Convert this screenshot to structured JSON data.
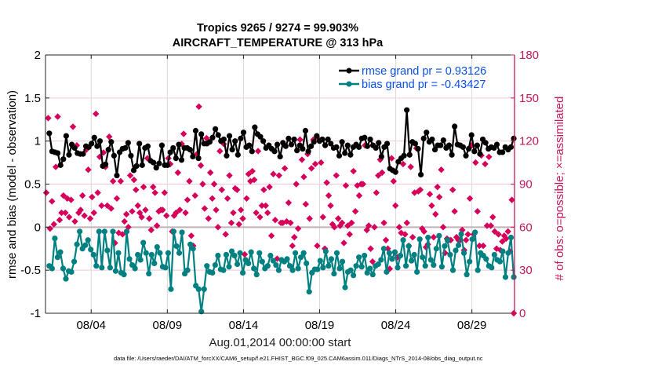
{
  "chart_data": {
    "type": "line",
    "title": [
      "Tropics 9265 / 9274 = 99.903%",
      "AIRCRAFT_TEMPERATURE @ 313 hPa"
    ],
    "xlabel": "Aug.01,2014 00:00:00 start",
    "ylabel": "rmse and bias (model - observation)",
    "ylabel_right": "# of obs: o=possible; ×=assimilated",
    "footer": "data file: /Users/raeder/DAI/ATM_forcXX/CAM6_setup/f.e21.FHIST_BGC.f09_025.CAM6assim.011/Diags_NTrS_2014-08/obs_diag_output.nc",
    "x_unit": "days since Aug.01,2014 00:00:00",
    "xlim": [
      0,
      30.8
    ],
    "x_ticks": [
      3,
      8,
      13,
      18,
      23,
      28
    ],
    "x_tick_labels": [
      "08/04",
      "08/09",
      "08/14",
      "08/19",
      "08/24",
      "08/29"
    ],
    "ylim": [
      -1,
      2
    ],
    "y_ticks": [
      -1,
      -0.5,
      0,
      0.5,
      1,
      1.5,
      2
    ],
    "y_tick_labels": [
      "-1",
      "-0.5",
      "0",
      "0.5",
      "1",
      "1.5",
      "2"
    ],
    "ylim_right": [
      0,
      180
    ],
    "y_ticks_right": [
      0,
      30,
      60,
      90,
      120,
      150,
      180
    ],
    "y_tick_labels_right": [
      "0",
      "30",
      "60",
      "90",
      "120",
      "150",
      "180"
    ],
    "grid": true,
    "legend_placement": "top-right",
    "zero_line": 0,
    "x_start": 0.25,
    "x_step": 0.25,
    "series": [
      {
        "name": "rmse grand pr = 0.93126",
        "axis": "left",
        "color": "#000000",
        "values": [
          1.09,
          0.88,
          0.87,
          0.86,
          0.72,
          0.79,
          1.06,
          0.84,
          0.96,
          0.92,
          0.86,
          0.85,
          0.85,
          0.94,
          0.93,
          0.97,
          1.04,
          0.94,
          1.0,
          0.71,
          0.73,
          0.9,
          0.99,
          0.83,
          0.6,
          0.87,
          0.91,
          0.92,
          0.98,
          0.83,
          0.66,
          0.71,
          0.97,
          0.72,
          0.92,
          0.94,
          0.77,
          0.75,
          0.69,
          0.74,
          0.95,
          0.72,
          0.72,
          0.87,
          0.92,
          0.8,
          0.96,
          0.78,
          0.92,
          0.92,
          0.9,
          0.82,
          1.12,
          0.8,
          1.08,
          0.97,
          0.97,
          0.99,
          1.04,
          1.14,
          1.07,
          1.0,
          1.02,
          0.83,
          1.06,
          0.9,
          1.0,
          0.84,
          1.03,
          1.1,
          0.93,
          0.95,
          0.88,
          1.16,
          1.08,
          1.05,
          1.0,
          0.92,
          0.95,
          0.91,
          0.88,
          0.96,
          0.82,
          0.98,
          0.94,
          1.03,
          0.96,
          1.02,
          0.89,
          0.95,
          0.91,
          1.12,
          0.88,
          0.94,
          0.99,
          1.06,
          1.0,
          1.02,
          0.95,
          1.02,
          0.97,
          0.92,
          0.93,
          0.83,
          0.99,
          0.86,
          0.95,
          0.84,
          0.93,
          0.96,
          0.93,
          1.03,
          1.04,
          0.94,
          1.02,
          0.95,
          0.92,
          0.98,
          0.82,
          0.93,
          0.97,
          0.68,
          0.66,
          0.64,
          0.76,
          0.8,
          0.83,
          1.36,
          0.84,
          0.99,
          0.97,
          0.91,
          0.61,
          1.03,
          1.1,
          0.99,
          1.02,
          0.9,
          0.95,
          0.95,
          1.01,
          0.92,
          0.95,
          0.84,
          1.17,
          0.96,
          0.95,
          0.93,
          0.83,
          0.91,
          1.07,
          0.88,
          0.95,
          0.85,
          1.02,
          0.98,
          0.91,
          0.93,
          0.92,
          0.96,
          0.87,
          0.87,
          0.93,
          0.9,
          0.93,
          1.03
        ]
      },
      {
        "name": "bias grand pr = -0.43427",
        "axis": "left",
        "color": "#008080",
        "values": [
          -0.45,
          -0.48,
          -0.13,
          -0.35,
          -0.29,
          -0.48,
          -0.6,
          -0.51,
          -0.52,
          -0.4,
          -0.2,
          -0.05,
          -0.25,
          -0.21,
          -0.15,
          -0.26,
          -0.32,
          -0.45,
          -0.05,
          -0.47,
          -0.05,
          -0.27,
          -0.47,
          -0.05,
          -0.51,
          -0.3,
          -0.53,
          -0.55,
          -0.05,
          -0.37,
          -0.44,
          -0.48,
          -0.32,
          -0.38,
          -0.18,
          -0.3,
          -0.54,
          -0.32,
          -0.42,
          -0.23,
          -0.3,
          -0.46,
          -0.47,
          -0.3,
          -0.72,
          -0.05,
          -0.22,
          -0.3,
          -0.06,
          -0.54,
          -0.5,
          -0.2,
          -0.25,
          -0.68,
          -0.72,
          -0.98,
          -0.72,
          -0.45,
          -0.52,
          -0.53,
          -0.44,
          -0.33,
          -0.49,
          -0.5,
          -0.32,
          -0.46,
          -0.28,
          -0.33,
          -0.43,
          -0.3,
          -0.53,
          -0.38,
          -0.42,
          -0.29,
          -0.48,
          -0.55,
          -0.3,
          -0.4,
          -0.48,
          -0.45,
          -0.33,
          -0.39,
          -0.44,
          -0.5,
          -0.38,
          -0.4,
          -0.37,
          -0.45,
          -0.5,
          -0.3,
          -0.48,
          -0.35,
          -0.3,
          -0.42,
          -0.75,
          -0.53,
          -0.49,
          -0.49,
          -0.39,
          -0.47,
          -0.28,
          -0.45,
          -0.37,
          -0.54,
          -0.3,
          -0.48,
          -0.4,
          -0.7,
          -0.52,
          -0.5,
          -0.56,
          -0.45,
          -0.35,
          -0.46,
          -0.33,
          -0.53,
          -0.48,
          -0.55,
          -0.45,
          -0.43,
          -0.38,
          -0.25,
          -0.52,
          -0.3,
          -0.37,
          -0.29,
          -0.47,
          -0.33,
          -0.15,
          -0.45,
          -0.22,
          -0.39,
          -0.32,
          -0.52,
          -0.14,
          -0.35,
          -0.45,
          -0.12,
          -0.38,
          -0.44,
          -0.25,
          -0.1,
          -0.46,
          -0.22,
          -0.15,
          -0.32,
          -0.5,
          -0.27,
          -0.21,
          -0.08,
          -0.3,
          -0.55,
          -0.4,
          -0.14,
          -0.06,
          -0.5,
          -0.3,
          -0.33,
          -0.37,
          -0.45,
          -0.47,
          -0.32,
          -0.38,
          -0.4,
          -0.28,
          -0.58,
          -0.3,
          -0.12,
          -0.58
        ]
      },
      {
        "name": "# of obs (assimilated)",
        "axis": "right",
        "color": "#d6005a",
        "marker": "diamond",
        "values": [
          84,
          136,
          59,
          78,
          62,
          102,
          137,
          65,
          70,
          82,
          70,
          80,
          67,
          79,
          130,
          64,
          117,
          70,
          72,
          82,
          68,
          114,
          100,
          66,
          81,
          70,
          139,
          84,
          109,
          75,
          112,
          102,
          75,
          123,
          73,
          92,
          49,
          80,
          56,
          92,
          55,
          64,
          69,
          60,
          96,
          71,
          93,
          86,
          75,
          70,
          67,
          88,
          72,
          108,
          66,
          58,
          88,
          84,
          61,
          71,
          72,
          72,
          84,
          68,
          108,
          104,
          57,
          68,
          70,
          98,
          72,
          118,
          125,
          70,
          79,
          92,
          54,
          47,
          82,
          111,
          144,
          103,
          90,
          73,
          122,
          66,
          98,
          80,
          90,
          72,
          60,
          113,
          86,
          118,
          55,
          80,
          96,
          63,
          70,
          87,
          86,
          62,
          72,
          66,
          41,
          80,
          97,
          92,
          99,
          93,
          70,
          113,
          67,
          75,
          86,
          75,
          70,
          88,
          54,
          97,
          65,
          38,
          96,
          63,
          63,
          101,
          64,
          77,
          63,
          47,
          53,
          90,
          59,
          121,
          107,
          95,
          76,
          111,
          66,
          101,
          121,
          104,
          47,
          121,
          105,
          67,
          45,
          91,
          82,
          75,
          62,
          60,
          96,
          66,
          61,
          63,
          49,
          89,
          61,
          55,
          63,
          99,
          71,
          89,
          82,
          90,
          90,
          117,
          58,
          61,
          45,
          36,
          60,
          84,
          96,
          107,
          98,
          63,
          51,
          45,
          31,
          108,
          92,
          75,
          39,
          60,
          56,
          104,
          55,
          63,
          47,
          102,
          53,
          84,
          115,
          85,
          86,
          59,
          57,
          46,
          48,
          83,
          75,
          53,
          69,
          88,
          81,
          100,
          60,
          42,
          52,
          51,
          51,
          86,
          71,
          53,
          51,
          51,
          58,
          44,
          51,
          55,
          80,
          117,
          55,
          105,
          71,
          47,
          110,
          47,
          104,
          61,
          109,
          61,
          67,
          57,
          45,
          55,
          44,
          50,
          54,
          52,
          57,
          43,
          79,
          0
        ]
      }
    ]
  },
  "legend": {
    "rmse_label": "rmse grand pr = 0.93126",
    "bias_label": "bias grand pr = -0.43427"
  },
  "colors": {
    "rmse": "#000000",
    "bias": "#008080",
    "obs": "#d6005a",
    "right_axis": "#c2185b",
    "legend_text": "#0a50e6",
    "grid_h": "#f3c6d6",
    "grid_v": "#d9d9d9",
    "zero_line": "#bfb2b6"
  }
}
